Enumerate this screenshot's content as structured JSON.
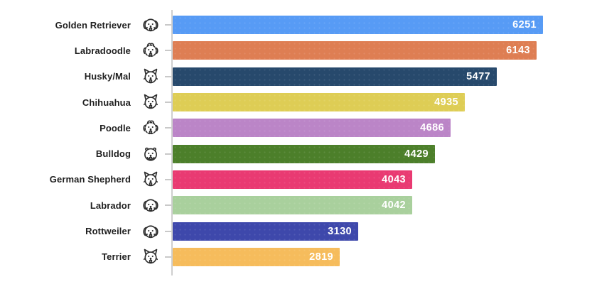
{
  "chart": {
    "rows": [
      {
        "label": "Golden Retriever",
        "value": 6251,
        "color": "#579BF5",
        "icon": "golden-retriever-icon"
      },
      {
        "label": "Labradoodle",
        "value": 6143,
        "color": "#DE7E53",
        "icon": "labradoodle-icon"
      },
      {
        "label": "Husky/Mal",
        "value": 5477,
        "color": "#27496C",
        "icon": "husky-mal-icon"
      },
      {
        "label": "Chihuahua",
        "value": 4935,
        "color": "#DECD55",
        "icon": "chihuahua-icon"
      },
      {
        "label": "Poodle",
        "value": 4686,
        "color": "#BB85C7",
        "icon": "poodle-icon"
      },
      {
        "label": "Bulldog",
        "value": 4429,
        "color": "#4C7F2A",
        "icon": "bulldog-icon"
      },
      {
        "label": "German Shepherd",
        "value": 4043,
        "color": "#E93A72",
        "icon": "german-shepherd-icon"
      },
      {
        "label": "Labrador",
        "value": 4042,
        "color": "#A9D09D",
        "icon": "labrador-icon"
      },
      {
        "label": "Rottweiler",
        "value": 3130,
        "color": "#3E48AB",
        "icon": "rottweiler-icon"
      },
      {
        "label": "Terrier",
        "value": 2819,
        "color": "#F6BC5C",
        "icon": "terrier-icon"
      }
    ],
    "axis_color": "#cfcfcf",
    "value_label_color": "#ffffff",
    "icon_stroke_color": "#2e2e2e"
  },
  "chart_data": {
    "type": "bar",
    "orientation": "horizontal",
    "title": "",
    "xlabel": "",
    "ylabel": "",
    "grid": false,
    "legend": false,
    "value_labels_position": "inside-end",
    "categories": [
      "Golden Retriever",
      "Labradoodle",
      "Husky/Mal",
      "Chihuahua",
      "Poodle",
      "Bulldog",
      "German Shepherd",
      "Labrador",
      "Rottweiler",
      "Terrier"
    ],
    "values": [
      6251,
      6143,
      5477,
      4935,
      4686,
      4429,
      4043,
      4042,
      3130,
      2819
    ],
    "colors": [
      "#579BF5",
      "#DE7E53",
      "#27496C",
      "#DECD55",
      "#BB85C7",
      "#4C7F2A",
      "#E93A72",
      "#A9D09D",
      "#3E48AB",
      "#F6BC5C"
    ]
  }
}
